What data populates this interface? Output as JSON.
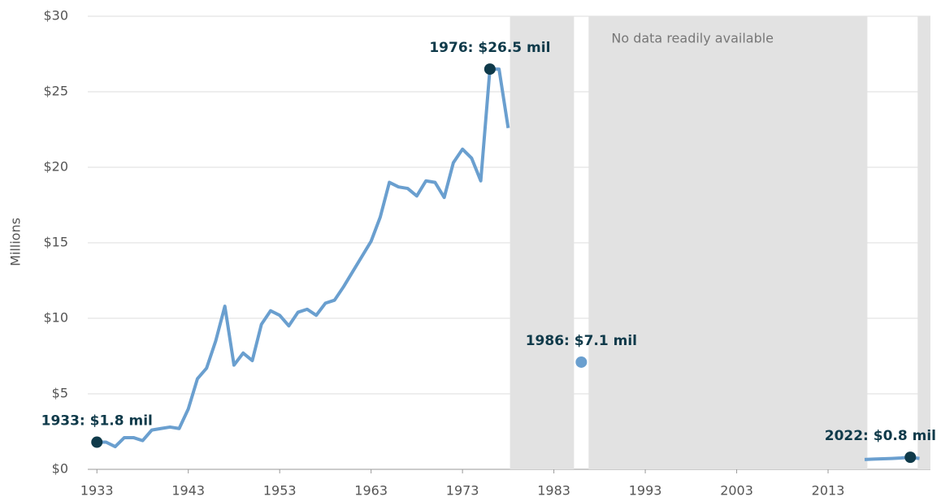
{
  "chart_data": {
    "type": "line",
    "ylabel": "Millions",
    "xlim": [
      1932,
      2024.2
    ],
    "xticks": [
      1933,
      1943,
      1953,
      1963,
      1973,
      1983,
      1993,
      2003,
      2013
    ],
    "ylim": [
      0,
      30
    ],
    "yticks": [
      {
        "value": 0,
        "label": "$0"
      },
      {
        "value": 5,
        "label": "$5"
      },
      {
        "value": 10,
        "label": "$10"
      },
      {
        "value": 15,
        "label": "$15"
      },
      {
        "value": 20,
        "label": "$20"
      },
      {
        "value": 25,
        "label": "$25"
      },
      {
        "value": 30,
        "label": "$30"
      }
    ],
    "grid": true,
    "shaded_ranges": [
      [
        1978.2,
        1985.2
      ],
      [
        1986.8,
        2017.3
      ],
      [
        2022.8,
        2024.2
      ]
    ],
    "shade_label": "No data readily available",
    "series": [
      {
        "color": "#6a9fcf",
        "x": [
          1933,
          1934,
          1935,
          1936,
          1937,
          1938,
          1939,
          1940,
          1941,
          1942,
          1943,
          1944,
          1945,
          1946,
          1947,
          1948,
          1949,
          1950,
          1951,
          1952,
          1953,
          1954,
          1955,
          1956,
          1957,
          1958,
          1959,
          1960,
          1961,
          1962,
          1963,
          1964,
          1965,
          1966,
          1967,
          1968,
          1969,
          1970,
          1971,
          1972,
          1973,
          1974,
          1975,
          1976,
          1977,
          1978,
          1985,
          1986,
          1987,
          2016,
          2017,
          2018,
          2019,
          2020,
          2021,
          2022,
          2023
        ],
        "values": [
          1.8,
          1.8,
          1.5,
          2.1,
          2.1,
          1.9,
          2.6,
          2.7,
          2.8,
          2.7,
          4.0,
          6.0,
          6.7,
          8.5,
          10.8,
          6.9,
          7.7,
          7.2,
          9.6,
          10.5,
          10.2,
          9.5,
          10.4,
          10.6,
          10.2,
          11.0,
          11.2,
          12.1,
          13.1,
          14.1,
          15.1,
          16.7,
          19.0,
          18.7,
          18.6,
          18.1,
          19.1,
          19.0,
          18.0,
          20.3,
          21.2,
          20.6,
          19.1,
          26.5,
          26.5,
          22.6,
          null,
          7.1,
          null,
          null,
          0.65,
          0.68,
          0.7,
          0.72,
          0.75,
          0.8,
          0.72
        ]
      }
    ],
    "annotations": [
      {
        "label": "1933: $1.8 mil",
        "x": 1933,
        "y": 1.8,
        "color": "#0f3a4a"
      },
      {
        "label": "1976: $26.5 mil",
        "x": 1976,
        "y": 26.5,
        "color": "#0f3a4a"
      },
      {
        "label": "1986: $7.1 mil",
        "x": 1986,
        "y": 7.1,
        "color": "#6a9fcf"
      },
      {
        "label": "2022: $0.8 mil",
        "x": 2022,
        "y": 0.8,
        "color": "#0f3a4a"
      }
    ]
  }
}
